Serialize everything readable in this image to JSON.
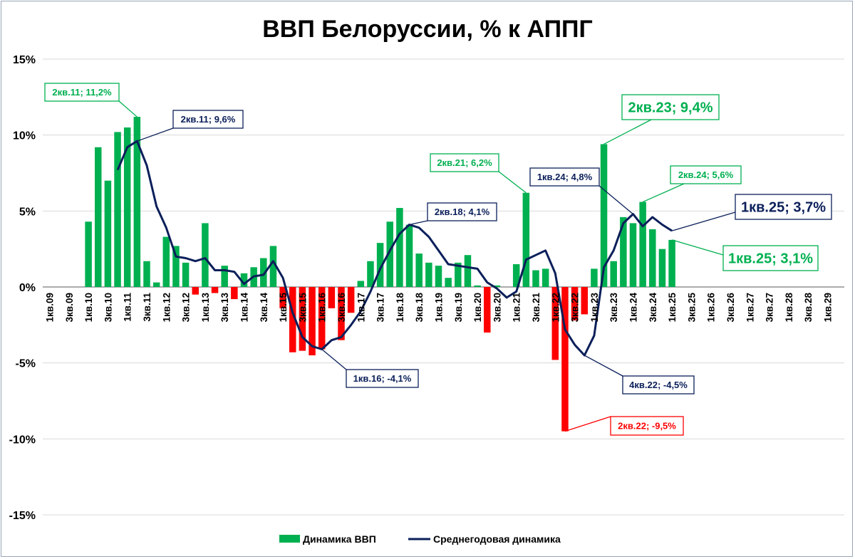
{
  "chart_data": {
    "type": "bar",
    "title": "ВВП Белоруссии, % к АППГ",
    "xlabel": "",
    "ylabel": "",
    "ylim": [
      -15,
      15
    ],
    "yticks": [
      15,
      10,
      5,
      0,
      -5,
      -10,
      -15
    ],
    "ytick_labels": [
      "15%",
      "10%",
      "5%",
      "0%",
      "-5%",
      "-10%",
      "-15%"
    ],
    "grid": true,
    "legend_position": "bottom",
    "colors": {
      "positive": "#00b050",
      "negative": "#ff0000",
      "line": "#0b1f5a"
    },
    "categories": [
      "1кв.09",
      "2кв.09",
      "3кв.09",
      "4кв.09",
      "1кв.10",
      "2кв.10",
      "3кв.10",
      "4кв.10",
      "1кв.11",
      "2кв.11",
      "3кв.11",
      "4кв.11",
      "1кв.12",
      "2кв.12",
      "3кв.12",
      "4кв.12",
      "1кв.13",
      "2кв.13",
      "3кв.13",
      "4кв.13",
      "1кв.14",
      "2кв.14",
      "3кв.14",
      "4кв.14",
      "1кв.15",
      "2кв.15",
      "3кв.15",
      "4кв.15",
      "1кв.16",
      "2кв.16",
      "3кв.16",
      "4кв.16",
      "1кв.17",
      "2кв.17",
      "3кв.17",
      "4кв.17",
      "1кв.18",
      "2кв.18",
      "3кв.18",
      "4кв.18",
      "1кв.19",
      "2кв.19",
      "3кв.19",
      "4кв.19",
      "1кв.20",
      "2кв.20",
      "3кв.20",
      "4кв.20",
      "1кв.21",
      "2кв.21",
      "3кв.21",
      "4кв.21",
      "1кв.22",
      "2кв.22",
      "3кв.22",
      "4кв.22",
      "1кв.23",
      "2кв.23",
      "3кв.23",
      "4кв.23",
      "1кв.24",
      "2кв.24",
      "3кв.24",
      "4кв.24",
      "1кв.25",
      "2кв.25",
      "3кв.25",
      "4кв.25",
      "1кв.26",
      "2кв.26",
      "3кв.26",
      "4кв.26",
      "1кв.27",
      "2кв.27",
      "3кв.27",
      "4кв.27",
      "1кв.28",
      "2кв.28",
      "3кв.28",
      "4кв.28",
      "1кв.29"
    ],
    "tick_labels": [
      "1кв.09",
      "3кв.09",
      "1кв.10",
      "3кв.10",
      "1кв.11",
      "3кв.11",
      "1кв.12",
      "3кв.12",
      "1кв.13",
      "3кв.13",
      "1кв.14",
      "3кв.14",
      "1кв.15",
      "3кв.15",
      "1кв.16",
      "3кв.16",
      "1кв.17",
      "3кв.17",
      "1кв.18",
      "3кв.18",
      "1кв.19",
      "3кв.19",
      "1кв.20",
      "3кв.20",
      "1кв.21",
      "3кв.21",
      "1кв.22",
      "3кв.22",
      "1кв.23",
      "3кв.23",
      "1кв.24",
      "3кв.24",
      "1кв.25",
      "3кв.25",
      "1кв.26",
      "3кв.26",
      "1кв.27",
      "3кв.27",
      "1кв.28",
      "3кв.28",
      "1кв.29"
    ],
    "series": [
      {
        "name": "Динамика ВВП",
        "type": "bar",
        "values": [
          null,
          null,
          null,
          null,
          4.3,
          9.2,
          7.0,
          10.2,
          10.5,
          11.2,
          1.7,
          0.3,
          3.3,
          2.7,
          1.6,
          -0.5,
          4.2,
          -0.4,
          1.4,
          -0.8,
          0.9,
          1.3,
          1.9,
          2.7,
          -1.4,
          -4.3,
          -4.2,
          -4.5,
          -4.1,
          -1.4,
          -3.5,
          -1.7,
          0.4,
          1.7,
          2.9,
          4.3,
          5.2,
          4.1,
          2.2,
          1.6,
          1.4,
          0.6,
          1.6,
          2.1,
          0.1,
          -3.0,
          0.1,
          null,
          1.5,
          6.2,
          1.1,
          1.2,
          -4.8,
          -9.5,
          -2.2,
          -1.8,
          1.2,
          9.4,
          1.7,
          4.6,
          4.2,
          5.6,
          3.8,
          2.5,
          3.1,
          null,
          null,
          null,
          null,
          null,
          null,
          null,
          null,
          null,
          null,
          null,
          null,
          null,
          null,
          null,
          null
        ]
      },
      {
        "name": "Среднегодовая динамика",
        "type": "line",
        "values": [
          null,
          null,
          null,
          null,
          null,
          null,
          null,
          7.7,
          9.2,
          9.6,
          8.0,
          5.3,
          3.9,
          2.0,
          1.9,
          1.7,
          1.9,
          1.1,
          1.1,
          1.0,
          0.2,
          0.7,
          0.8,
          1.7,
          0.6,
          -1.7,
          -3.3,
          -3.9,
          -4.1,
          -3.5,
          -3.3,
          -2.5,
          -1.6,
          -0.3,
          1.2,
          2.4,
          3.5,
          4.1,
          3.9,
          3.3,
          2.4,
          1.5,
          1.4,
          1.3,
          1.2,
          0.3,
          -0.1,
          -0.7,
          -0.3,
          1.8,
          2.1,
          2.4,
          0.9,
          -2.8,
          -3.8,
          -4.5,
          -3.2,
          1.3,
          2.4,
          4.2,
          4.8,
          4.0,
          4.6,
          4.1,
          3.7,
          null,
          null,
          null,
          null,
          null,
          null,
          null,
          null,
          null,
          null,
          null,
          null,
          null,
          null,
          null,
          null
        ]
      }
    ],
    "annotations": [
      {
        "text": "2кв.11; 11,2%",
        "color": "#00b050",
        "target": "2кв.11",
        "series": "Динамика ВВП",
        "value": 11.2
      },
      {
        "text": "2кв.11; 9,6%",
        "color": "#0b1f5a",
        "target": "2кв.11",
        "series": "Среднегодовая динамика",
        "value": 9.6
      },
      {
        "text": "1кв.16; -4,1%",
        "color": "#0b1f5a",
        "target": "1кв.16",
        "series": "Среднегодовая динамика",
        "value": -4.1
      },
      {
        "text": "2кв.18; 4,1%",
        "color": "#0b1f5a",
        "target": "2кв.18",
        "series": "Среднегодовая динамика",
        "value": 4.1
      },
      {
        "text": "2кв.21; 6,2%",
        "color": "#00b050",
        "target": "2кв.21",
        "series": "Динамика ВВП",
        "value": 6.2
      },
      {
        "text": "2кв.22; -9,5%",
        "color": "#ff0000",
        "target": "2кв.22",
        "series": "Динамика ВВП",
        "value": -9.5
      },
      {
        "text": "4кв.22; -4,5%",
        "color": "#0b1f5a",
        "target": "4кв.22",
        "series": "Среднегодовая динамика",
        "value": -4.5
      },
      {
        "text": "2кв.23; 9,4%",
        "color": "#00b050",
        "target": "2кв.23",
        "series": "Динамика ВВП",
        "value": 9.4
      },
      {
        "text": "1кв.24; 4,8%",
        "color": "#0b1f5a",
        "target": "1кв.24",
        "series": "Среднегодовая динамика",
        "value": 4.8
      },
      {
        "text": "2кв.24; 5,6%",
        "color": "#00b050",
        "target": "2кв.24",
        "series": "Динамика ВВП",
        "value": 5.6
      },
      {
        "text": "1кв.25; 3,7%",
        "color": "#0b1f5a",
        "target": "1кв.25",
        "series": "Среднегодовая динамика",
        "value": 3.7
      },
      {
        "text": "1кв.25; 3,1%",
        "color": "#00b050",
        "target": "1кв.25",
        "series": "Динамика ВВП",
        "value": 3.1
      }
    ]
  }
}
